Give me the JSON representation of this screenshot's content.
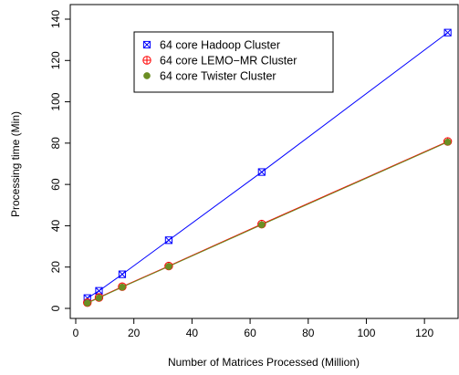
{
  "chart_data": {
    "type": "line",
    "xlabel": "Number of Matrices Processed (Million)",
    "ylabel": "Processing time (Min)",
    "xlim": [
      0,
      130
    ],
    "ylim": [
      0,
      140
    ],
    "x_ticks": [
      0,
      20,
      40,
      60,
      80,
      100,
      120
    ],
    "y_ticks": [
      0,
      20,
      40,
      60,
      80,
      100,
      120,
      140
    ],
    "x_tick_labels": [
      "0",
      "20",
      "40",
      "60",
      "80",
      "100",
      "120"
    ],
    "y_tick_labels": [
      "0",
      "20",
      "40",
      "60",
      "80",
      "100",
      "120",
      "140"
    ],
    "grid": false,
    "legend_position": "top-left",
    "x": [
      4,
      8,
      16,
      32,
      64,
      128
    ],
    "series": [
      {
        "name": "64 core Hadoop Cluster",
        "color": "#0000ff",
        "marker": "boxed-x",
        "values": [
          5,
          8.5,
          16.5,
          33,
          66,
          133.5
        ]
      },
      {
        "name": "64 core LEMO−MR Cluster",
        "color": "#ff0000",
        "marker": "circle-plus",
        "values": [
          2.8,
          5.3,
          10.5,
          20.5,
          40.8,
          80.8
        ]
      },
      {
        "name": "64 core Twister Cluster",
        "color": "#6b8e23",
        "marker": "filled-circle",
        "values": [
          2.6,
          5.1,
          10.3,
          20.3,
          40.5,
          80.5
        ]
      }
    ]
  }
}
